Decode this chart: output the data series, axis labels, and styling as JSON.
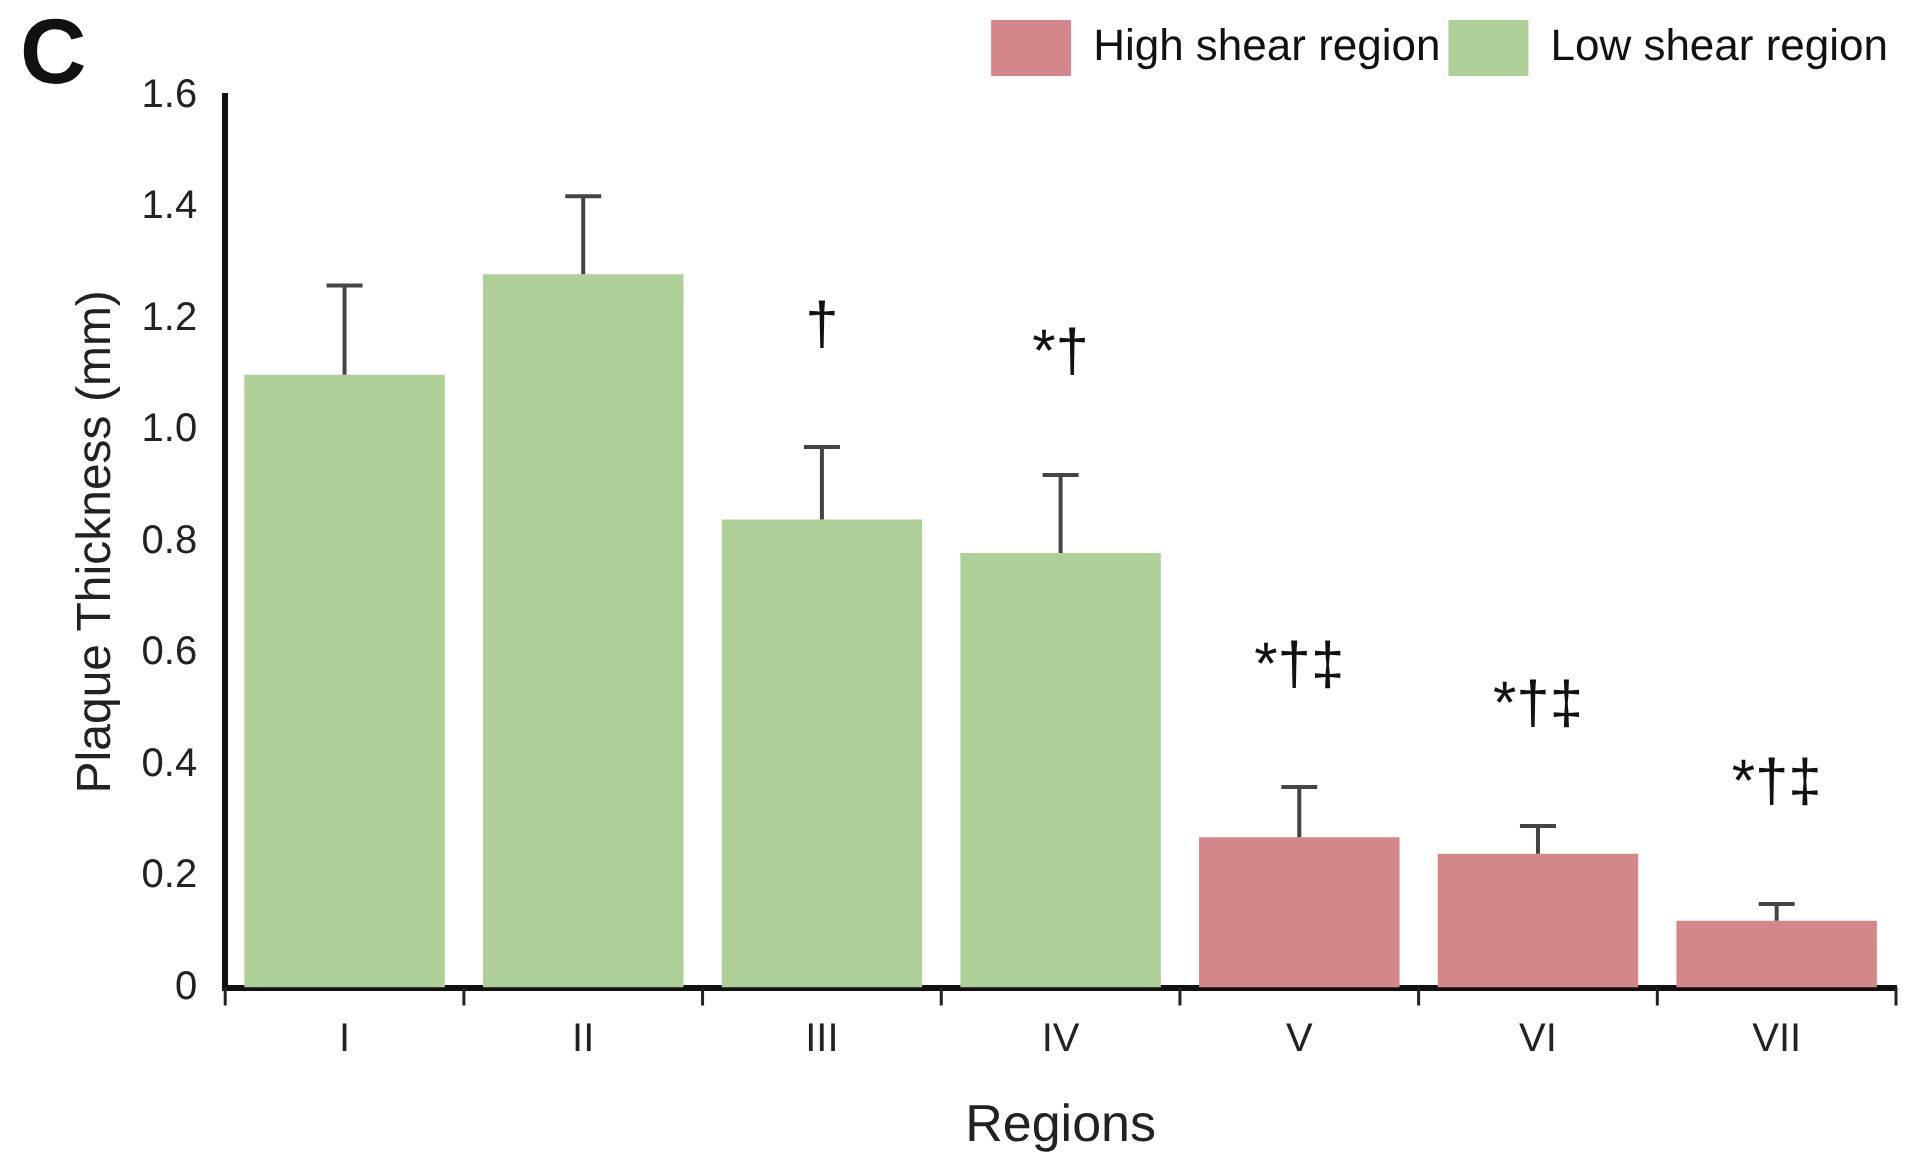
{
  "chart_data": {
    "type": "bar",
    "title": "C",
    "xlabel": "Regions",
    "ylabel": "Plaque Thickness (mm)",
    "categories": [
      "I",
      "II",
      "III",
      "IV",
      "V",
      "VI",
      "VII"
    ],
    "series": [
      {
        "name": "High shear region",
        "color": "#d4878b",
        "values": [
          null,
          null,
          null,
          null,
          0.27,
          0.24,
          0.12
        ],
        "errors": [
          null,
          null,
          null,
          null,
          [
            0.27,
            0.36
          ],
          [
            0.24,
            0.29
          ],
          [
            0.12,
            0.15
          ]
        ]
      },
      {
        "name": "Low shear region",
        "color": "#afcf98",
        "values": [
          1.1,
          1.28,
          0.84,
          0.78,
          null,
          null,
          null
        ],
        "errors": [
          [
            1.1,
            1.26
          ],
          [
            1.28,
            1.42
          ],
          [
            0.84,
            0.97
          ],
          [
            0.78,
            0.92
          ],
          null,
          null,
          null
        ]
      }
    ],
    "ylim": [
      0,
      1.6
    ],
    "yticks": [
      0,
      {
        "value": 0.2,
        "label": "0.2"
      },
      {
        "value": 0.4,
        "label": "0.4"
      },
      {
        "value": 0.6,
        "label": "0.6"
      },
      {
        "value": 0.8,
        "label": "0.8"
      },
      {
        "value": 1.0,
        "label": "1.0"
      },
      {
        "value": 1.2,
        "label": "1.2"
      },
      {
        "value": 1.4,
        "label": "1.4"
      },
      {
        "value": 1.6,
        "label": "1.6"
      }
    ],
    "grid": false,
    "legend": "top right",
    "annotations": [
      {
        "text": "†",
        "x": "III",
        "y": 0.97
      },
      {
        "text": "*†",
        "x": "IV",
        "y": 0.92
      },
      {
        "text": "*†‡",
        "x": "V",
        "y": 0.36
      },
      {
        "text": "*†‡",
        "x": "VI",
        "y": 0.29
      },
      {
        "text": "*†‡",
        "x": "VII",
        "y": 0.15
      }
    ]
  }
}
